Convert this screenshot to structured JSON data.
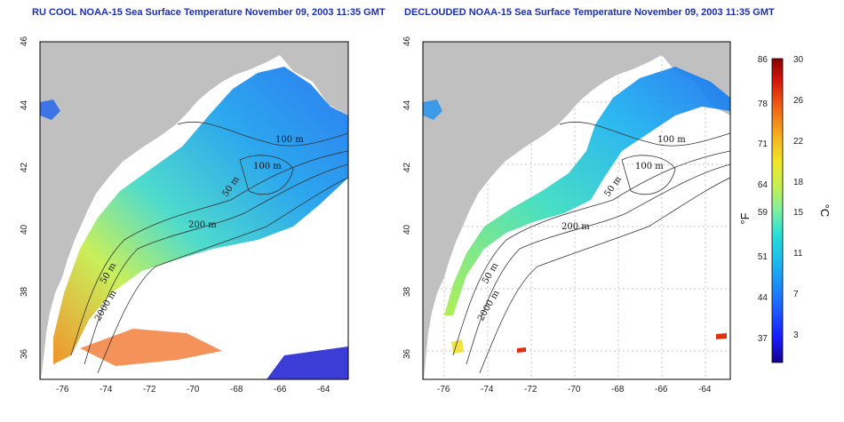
{
  "titles": {
    "left": "RU COOL NOAA-15 Sea Surface Temperature November 09, 2003 11:35 GMT",
    "right": "DECLOUDED NOAA-15 Sea Surface Temperature November 09, 2003 11:35 GMT"
  },
  "axes": {
    "lat_ticks": [
      "46",
      "44",
      "42",
      "40",
      "38",
      "36"
    ],
    "lon_ticks": [
      "-76",
      "-74",
      "-72",
      "-70",
      "-68",
      "-66",
      "-64"
    ]
  },
  "contour_labels": {
    "left": [
      "100 m",
      "100 m",
      "50 m",
      "200 m",
      "50 m",
      "2000 m"
    ],
    "right": [
      "100 m",
      "100 m",
      "50 m",
      "200 m",
      "50 m",
      "2000 m"
    ]
  },
  "colorbar": {
    "fahrenheit_ticks": [
      "86",
      "78",
      "71",
      "64",
      "59",
      "51",
      "44",
      "37"
    ],
    "celsius_ticks": [
      "30",
      "26",
      "22",
      "18",
      "15",
      "11",
      "7",
      "3"
    ],
    "fahrenheit_unit": "°F",
    "celsius_unit": "°C"
  },
  "colors": {
    "land": "#c0c0c0",
    "title": "#1a2fb0",
    "gridline": "#b0b0b0"
  }
}
